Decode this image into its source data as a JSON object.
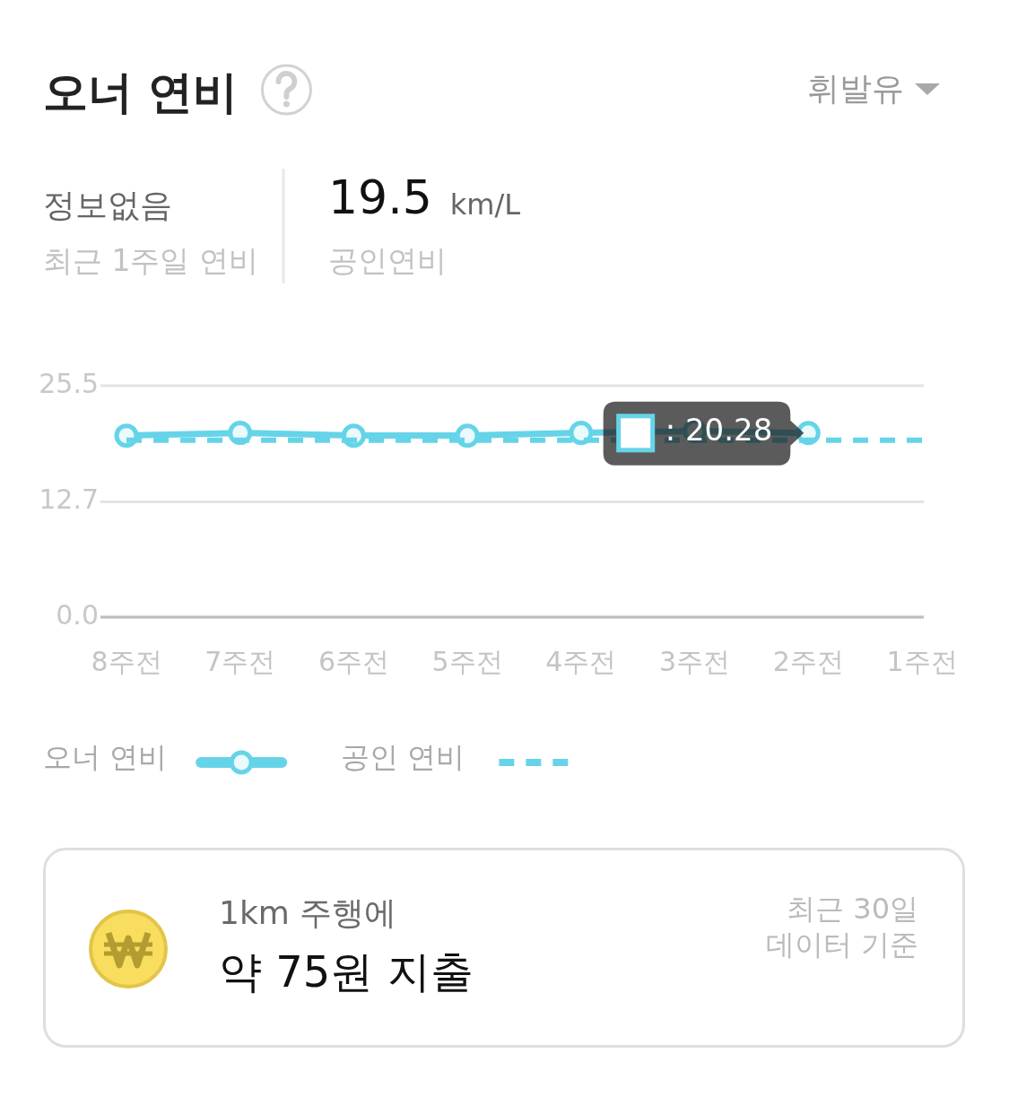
{
  "chart_data": {
    "type": "line",
    "title": "오너 연비",
    "categories": [
      "8주전",
      "7주전",
      "6주전",
      "5주전",
      "4주전",
      "3주전",
      "2주전",
      "1주전"
    ],
    "series": [
      {
        "name": "오너 연비",
        "color": "#66d4e8",
        "values": [
          20.0,
          20.3,
          20.0,
          20.0,
          20.3,
          20.5,
          20.28,
          null
        ],
        "marker": "circle",
        "line_style": "solid"
      },
      {
        "name": "공인 연비",
        "color": "#66d4e8",
        "values": [
          19.5,
          19.5,
          19.5,
          19.5,
          19.5,
          19.5,
          19.5,
          19.5
        ],
        "marker": "none",
        "line_style": "dashed"
      }
    ],
    "ylim": [
      0,
      25.5
    ],
    "yticks": [
      {
        "value": 0,
        "label": "0.0"
      },
      12.7,
      25.5
    ],
    "grid": "y",
    "legend": "bottom",
    "annotations": [
      "휘발유",
      "정보없음",
      "최근 1주일 연비",
      "19.5",
      "km/L",
      "공인연비",
      "1km 주행에",
      "약 75원 지출",
      "최근 30일",
      "데이터 기준",
      {
        "text": ": 20.28",
        "x": "2주전",
        "y": 20.28
      }
    ]
  }
}
